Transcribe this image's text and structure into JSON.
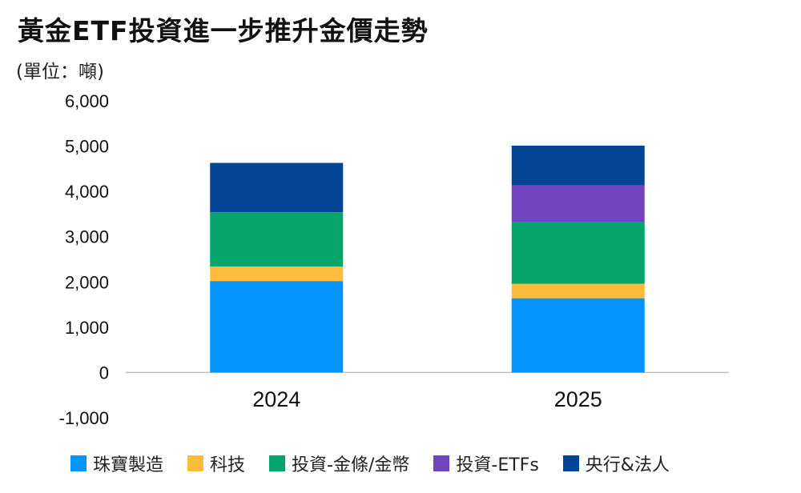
{
  "chart_data": {
    "type": "bar",
    "stacked": true,
    "title": "黃金ETF投資進一步推升金價走勢",
    "unit_label": "(單位：噸)",
    "categories": [
      "2024",
      "2025"
    ],
    "ylim": [
      -1000,
      6000
    ],
    "yticks": [
      -1000,
      0,
      1000,
      2000,
      3000,
      4000,
      5000,
      6000
    ],
    "ytick_labels": [
      "-1,000",
      "0",
      "1,000",
      "2,000",
      "3,000",
      "4,000",
      "5,000",
      "6,000"
    ],
    "grid": false,
    "legend_position": "bottom",
    "series": [
      {
        "name": "珠寶製造",
        "color": "#0494FC",
        "values": [
          2020,
          1640
        ]
      },
      {
        "name": "科技",
        "color": "#FCBC3C",
        "values": [
          320,
          320
        ]
      },
      {
        "name": "投資-金條/金幣",
        "color": "#04A46C",
        "values": [
          1200,
          1370
        ]
      },
      {
        "name": "投資-ETFs",
        "color": "#7444C0",
        "values": [
          0,
          800
        ]
      },
      {
        "name": "央行&法人",
        "color": "#044494",
        "values": [
          1090,
          880
        ]
      }
    ]
  }
}
